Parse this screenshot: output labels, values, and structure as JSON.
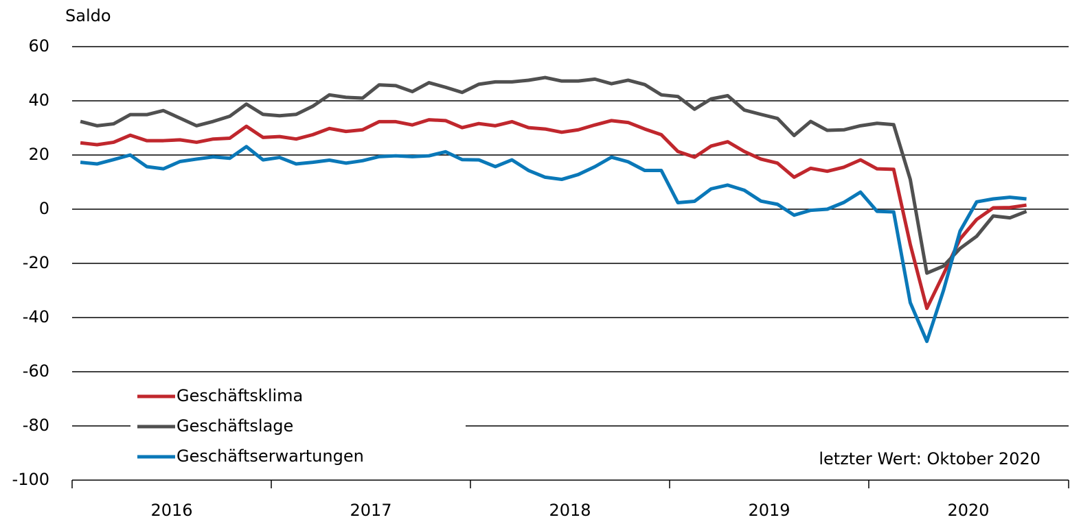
{
  "chart_data": {
    "type": "line",
    "y_label": "Saldo",
    "annotation": "letzter Wert: Oktober 2020",
    "categories": [
      "2016",
      null,
      null,
      null,
      null,
      null,
      null,
      null,
      null,
      null,
      null,
      null,
      "2017",
      null,
      null,
      null,
      null,
      null,
      null,
      null,
      null,
      null,
      null,
      null,
      "2018",
      null,
      null,
      null,
      null,
      null,
      null,
      null,
      null,
      null,
      null,
      null,
      "2019",
      null,
      null,
      null,
      null,
      null,
      null,
      null,
      null,
      null,
      null,
      null,
      "2020",
      null,
      null,
      null,
      null,
      null,
      null,
      null,
      null,
      null
    ],
    "series": [
      {
        "name": "Geschäftsklima",
        "color": "#c0272d",
        "values": [
          24.5,
          23.8,
          24.7,
          27.3,
          25.3,
          25.3,
          25.6,
          24.7,
          25.9,
          26.2,
          30.6,
          26.5,
          26.8,
          25.9,
          27.5,
          29.8,
          28.7,
          29.3,
          32.3,
          32.3,
          31.1,
          33,
          32.7,
          30.1,
          31.6,
          30.8,
          32.3,
          30.1,
          29.6,
          28.4,
          29.3,
          31.1,
          32.7,
          32,
          29.6,
          27.5,
          21.3,
          19.2,
          23.3,
          24.9,
          21.3,
          18.5,
          17,
          11.8,
          15.1,
          14,
          15.5,
          18.2,
          14.9,
          14.7,
          -13,
          -36.6,
          -24,
          -11,
          -3.8,
          0.5,
          0.6,
          1.5
        ]
      },
      {
        "name": "Geschäftslage",
        "color": "#505050",
        "values": [
          32.4,
          30.8,
          31.5,
          34.9,
          34.9,
          36.4,
          33.6,
          30.8,
          32.4,
          34.3,
          38.8,
          35,
          34.5,
          35,
          38,
          42.2,
          41.3,
          41,
          45.9,
          45.6,
          43.4,
          46.7,
          45,
          43.1,
          46.1,
          47,
          47,
          47.6,
          48.6,
          47.3,
          47.3,
          48,
          46.3,
          47.6,
          46,
          42.2,
          41.6,
          36.9,
          40.7,
          41.9,
          36.6,
          35,
          33.5,
          27.2,
          32.4,
          29.1,
          29.3,
          30.8,
          31.7,
          31.2,
          11,
          -23.6,
          -21,
          -14.5,
          -10,
          -2.5,
          -3.2,
          -0.8
        ]
      },
      {
        "name": "Geschäftserwartungen",
        "color": "#0a78b8",
        "values": [
          17.3,
          16.7,
          18.3,
          20,
          15.7,
          14.9,
          17.6,
          18.5,
          19.3,
          18.8,
          23.1,
          18.2,
          19.1,
          16.7,
          17.3,
          18.1,
          17,
          17.9,
          19.4,
          19.7,
          19.4,
          19.7,
          21.2,
          18.3,
          18.2,
          15.7,
          18.2,
          14.3,
          11.8,
          11,
          12.8,
          15.7,
          19.2,
          17.5,
          14.3,
          14.3,
          2.4,
          2.9,
          7.5,
          8.9,
          7,
          3,
          1.8,
          -2.2,
          -0.4,
          0,
          2.5,
          6.3,
          -0.8,
          -1,
          -34.5,
          -48.8,
          -30,
          -8.1,
          2.7,
          3.8,
          4.4,
          3.8
        ]
      }
    ],
    "ylim": [
      -100,
      60
    ],
    "yticks": [
      -100,
      -80,
      -60,
      -40,
      -20,
      0,
      20,
      40,
      60
    ],
    "grid": true,
    "legend": "lower left"
  }
}
